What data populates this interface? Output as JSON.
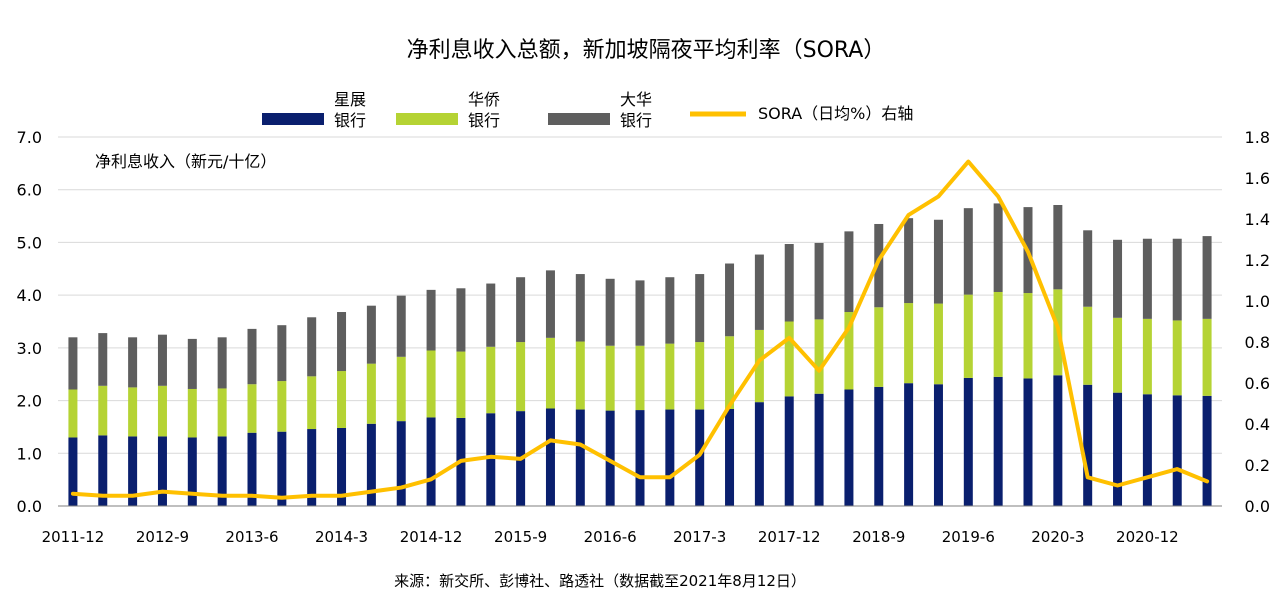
{
  "chart_data": {
    "type": "bar",
    "stacked": true,
    "title": "净利息收入总额，新加坡隔夜平均利率（SORA）",
    "ylabel_left": "净利息收入（新元/十亿）",
    "y_left_range": [
      0,
      7
    ],
    "y_left_ticks": [
      "0.0",
      "1.0",
      "2.0",
      "3.0",
      "4.0",
      "5.0",
      "6.0",
      "7.0"
    ],
    "y_right_range": [
      0,
      1.8
    ],
    "y_right_ticks": [
      "0.0",
      "0.2",
      "0.4",
      "0.6",
      "0.8",
      "1.0",
      "1.2",
      "1.4",
      "1.6",
      "1.8"
    ],
    "x_tick_labels": [
      "2011-12",
      "2012-9",
      "2013-6",
      "2014-3",
      "2014-12",
      "2015-9",
      "2016-6",
      "2017-3",
      "2017-12",
      "2018-9",
      "2019-6",
      "2020-3",
      "2020-12"
    ],
    "x_tick_index": [
      0,
      3,
      6,
      9,
      12,
      15,
      18,
      21,
      24,
      27,
      30,
      33,
      36
    ],
    "legend_placement": "top",
    "grid": "horizontal",
    "legend": [
      "星展\n银行",
      "华侨\n银行",
      "大华\n银行",
      "SORA（日均%）右轴"
    ],
    "series": [
      {
        "name": "星展银行",
        "color": "#0a1f6e",
        "values": [
          1.3,
          1.34,
          1.32,
          1.32,
          1.3,
          1.32,
          1.39,
          1.41,
          1.46,
          1.48,
          1.56,
          1.61,
          1.68,
          1.67,
          1.76,
          1.8,
          1.85,
          1.83,
          1.81,
          1.82,
          1.83,
          1.83,
          1.84,
          1.97,
          2.08,
          2.13,
          2.21,
          2.26,
          2.33,
          2.31,
          2.43,
          2.45,
          2.42,
          2.48,
          2.3,
          2.15,
          2.12,
          2.1,
          2.09
        ]
      },
      {
        "name": "华侨银行",
        "color": "#b5d334",
        "values": [
          0.91,
          0.94,
          0.93,
          0.96,
          0.92,
          0.91,
          0.92,
          0.96,
          1.0,
          1.08,
          1.14,
          1.22,
          1.27,
          1.26,
          1.26,
          1.31,
          1.34,
          1.29,
          1.23,
          1.22,
          1.25,
          1.28,
          1.38,
          1.37,
          1.42,
          1.41,
          1.47,
          1.51,
          1.52,
          1.53,
          1.58,
          1.61,
          1.62,
          1.63,
          1.48,
          1.42,
          1.43,
          1.42,
          1.46
        ]
      },
      {
        "name": "大华银行",
        "color": "#5e5e5e",
        "values": [
          0.99,
          1.0,
          0.95,
          0.97,
          0.95,
          0.97,
          1.05,
          1.06,
          1.12,
          1.12,
          1.1,
          1.16,
          1.15,
          1.2,
          1.2,
          1.23,
          1.28,
          1.28,
          1.27,
          1.24,
          1.26,
          1.29,
          1.38,
          1.43,
          1.47,
          1.45,
          1.53,
          1.58,
          1.61,
          1.59,
          1.64,
          1.68,
          1.63,
          1.6,
          1.45,
          1.48,
          1.52,
          1.55,
          1.57
        ]
      },
      {
        "name": "SORA（日均%）右轴",
        "color": "#ffc000",
        "type": "line",
        "values": [
          0.06,
          0.05,
          0.05,
          0.07,
          0.06,
          0.05,
          0.05,
          0.04,
          0.05,
          0.05,
          0.07,
          0.09,
          0.13,
          0.22,
          0.24,
          0.23,
          0.32,
          0.3,
          0.22,
          0.14,
          0.14,
          0.25,
          0.49,
          0.71,
          0.82,
          0.66,
          0.87,
          1.2,
          1.42,
          1.51,
          1.68,
          1.51,
          1.24,
          0.87,
          0.14,
          0.1,
          0.14,
          0.18,
          0.12
        ]
      }
    ]
  },
  "footer": {
    "source": "来源：新交所、彭博社、路透社（数据截至2021年8月12日）"
  }
}
